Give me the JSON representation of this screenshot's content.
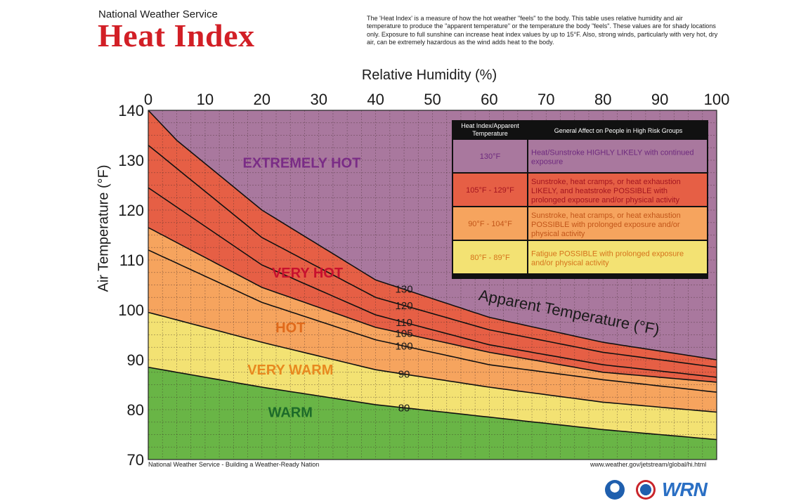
{
  "header": {
    "agency": "National Weather Service",
    "title": "Heat Index",
    "description": "The 'Heat Index' is a measure of how the hot weather \"feels\" to the body. This table uses relative humidity and air temperature to produce the \"apparent temperature\" or the temperature the body \"feels\". These values are for shady locations only. Exposure to full sunshine can increase heat index values by up to 15°F. Also, strong winds, particularly with very hot, dry air, can be extremely hazardous as the wind adds heat to the body."
  },
  "footer": {
    "left": "National Weather Service - Building a Weather-Ready Nation",
    "right": "www.weather.gov/jetstream/global/hi.html",
    "logos": [
      "noaa-logo",
      "nws-logo",
      "wrn-logo"
    ],
    "wrn_text": "WRN"
  },
  "colors": {
    "extremely_hot": "#a9789e",
    "very_hot": "#e65f45",
    "hot": "#f6a45e",
    "very_warm": "#f3e273",
    "warm": "#69b546"
  },
  "chart_data": {
    "type": "area",
    "xlabel": "Relative Humidity (%)",
    "ylabel": "Air Temperature (°F)",
    "xlim": [
      0,
      100
    ],
    "ylim": [
      70,
      140
    ],
    "x_ticks": [
      0,
      10,
      20,
      30,
      40,
      50,
      60,
      70,
      80,
      90,
      100
    ],
    "y_ticks": [
      70,
      80,
      90,
      100,
      110,
      120,
      130,
      140
    ],
    "x_axis_position": "top",
    "grid": true,
    "curve_title": "Apparent Temperature (°F)",
    "curves": [
      {
        "name": "80",
        "x": [
          0,
          20,
          40,
          60,
          80,
          100
        ],
        "y": [
          88.5,
          84.5,
          81.0,
          78.5,
          76.0,
          74.0
        ]
      },
      {
        "name": "90",
        "x": [
          0,
          20,
          40,
          60,
          80,
          100
        ],
        "y": [
          99.5,
          93.5,
          88.0,
          84.5,
          81.5,
          79.5
        ]
      },
      {
        "name": "100",
        "x": [
          0,
          20,
          40,
          60,
          80,
          100
        ],
        "y": [
          112.0,
          101.5,
          94.0,
          89.0,
          86.0,
          83.5
        ]
      },
      {
        "name": "105",
        "x": [
          0,
          20,
          40,
          60,
          80,
          100
        ],
        "y": [
          116.5,
          104.5,
          96.5,
          91.5,
          87.5,
          85.5
        ]
      },
      {
        "name": "110",
        "x": [
          0,
          20,
          40,
          60,
          80,
          100
        ],
        "y": [
          124.5,
          109.0,
          99.0,
          93.0,
          89.0,
          86.5
        ]
      },
      {
        "name": "120",
        "x": [
          0,
          20,
          40,
          60,
          80,
          100
        ],
        "y": [
          133.0,
          114.5,
          102.5,
          96.0,
          91.5,
          88.5
        ]
      },
      {
        "name": "130",
        "x": [
          0,
          5,
          20,
          40,
          60,
          80,
          100
        ],
        "y": [
          140.0,
          134.0,
          120.0,
          106.0,
          98.5,
          93.5,
          90.0
        ]
      }
    ],
    "regions": [
      {
        "label": "EXTREMELY HOT",
        "range": "130°F",
        "color": "#a9789e",
        "text_color": "#7a2c86",
        "label_x": 27,
        "label_y": 129.5
      },
      {
        "label": "VERY HOT",
        "range": "105°F - 129°F",
        "color": "#e65f45",
        "text_color": "#c8102e",
        "label_x": 28,
        "label_y": 107.5
      },
      {
        "label": "HOT",
        "range": "90°F - 104°F",
        "color": "#f6a45e",
        "text_color": "#e06a1b",
        "label_x": 25,
        "label_y": 96.5
      },
      {
        "label": "VERY WARM",
        "range": "80°F - 89°F",
        "color": "#f3e273",
        "text_color": "#e8891f",
        "label_x": 25,
        "label_y": 88
      },
      {
        "label": "WARM",
        "range": "",
        "color": "#69b546",
        "text_color": "#1d6b2a",
        "label_x": 25,
        "label_y": 79.5
      }
    ],
    "legend": {
      "position": "top-right",
      "headers": [
        "Heat Index/Apparent Temperature",
        "General Affect on People in High Risk Groups"
      ],
      "rows": [
        {
          "range": "130°F",
          "effect": "Heat/Sunstroke HIGHLY LIKELY with continued exposure",
          "color": "#a9789e",
          "text_color": "#6e2a7e"
        },
        {
          "range": "105°F - 129°F",
          "effect": "Sunstroke, heat cramps, or heat exhaustion LIKELY, and heatstroke POSSIBLE with prolonged exposure and/or physical activity",
          "color": "#e65f45",
          "text_color": "#a31520"
        },
        {
          "range": "90°F - 104°F",
          "effect": "Sunstroke, heat cramps, or heat exhaustion POSSIBLE with prolonged exposure and/or physical activity",
          "color": "#f6a45e",
          "text_color": "#c2561a"
        },
        {
          "range": "80°F - 89°F",
          "effect": "Fatigue POSSIBLE with prolonged exposure and/or physical activity",
          "color": "#f3e273",
          "text_color": "#d5731c"
        }
      ]
    }
  }
}
